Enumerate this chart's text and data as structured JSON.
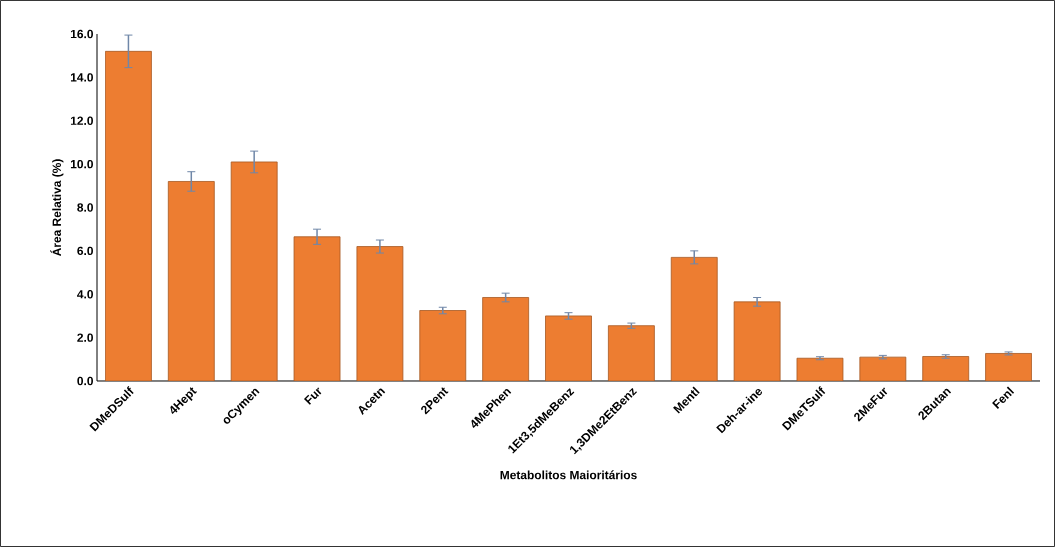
{
  "chart_data": {
    "type": "bar",
    "ylabel": "Área Relativa (%)",
    "xlabel": "Metabolitos Maioritários",
    "categories": [
      "DMeDSulf",
      "4Hept",
      "oCymen",
      "Fur",
      "Acetn",
      "2Pent",
      "4MePhen",
      "1Et3,5dMeBenz",
      "1,3DMe2EtBenz",
      "Mentl",
      "Deh-ar-ine",
      "DMeTSulf",
      "2MeFur",
      "2Butan",
      "Fenl"
    ],
    "values": [
      15.2,
      9.2,
      10.1,
      6.65,
      6.2,
      3.25,
      3.85,
      3.0,
      2.55,
      5.7,
      3.65,
      1.05,
      1.1,
      1.13,
      1.27
    ],
    "errors": [
      0.75,
      0.45,
      0.5,
      0.35,
      0.3,
      0.15,
      0.2,
      0.15,
      0.12,
      0.3,
      0.2,
      0.07,
      0.08,
      0.08,
      0.07
    ],
    "color": "#ed7d31",
    "ylim": [
      0,
      16
    ],
    "yticks": [
      {
        "value": 0,
        "label": "0.0"
      },
      {
        "value": 2,
        "label": "2.0"
      },
      {
        "value": 4,
        "label": "4.0"
      },
      {
        "value": 6,
        "label": "6.0"
      },
      {
        "value": 8,
        "label": "8.0"
      },
      {
        "value": 10,
        "label": "10.0"
      },
      {
        "value": 12,
        "label": "12.0"
      },
      {
        "value": 14,
        "label": "14.0"
      },
      {
        "value": 16,
        "label": "16.0"
      }
    ],
    "grid": false
  }
}
